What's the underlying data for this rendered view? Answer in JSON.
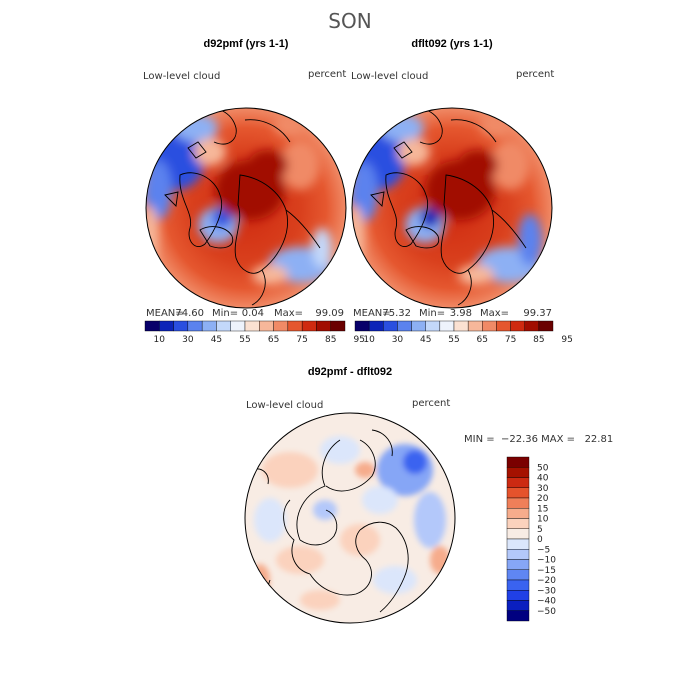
{
  "figure_title": "SON",
  "colors": {
    "abs_levels": [
      "#08006a",
      "#0c24b8",
      "#2a4fe0",
      "#5b82ee",
      "#8db0f4",
      "#c3d8fa",
      "#eef3fc",
      "#fbe1d2",
      "#f6b79a",
      "#f08a66",
      "#e5572f",
      "#cf2a10",
      "#a10d00",
      "#6a0000"
    ],
    "diff_levels": [
      "#000080",
      "#0a1fbf",
      "#2040e6",
      "#3a63f0",
      "#5f86f3",
      "#86a6f6",
      "#b3c8fa",
      "#dbe6fb",
      "#f8ece4",
      "#fbd2bd",
      "#f6ac8c",
      "#ef7f59",
      "#e5532c",
      "#cc2a12",
      "#a51100",
      "#7a0000"
    ],
    "land_outline": "#000000",
    "text": "#000000"
  },
  "panels": [
    {
      "id": "d92pmf",
      "title": "d92pmf (yrs 1-1)",
      "variable": "Low-level cloud",
      "units": "percent",
      "stats": {
        "mean_label": "MEAN=",
        "mean": "74.60",
        "min_label": "Min=",
        "min": "0.04",
        "max_label": "Max=",
        "max": "99.09"
      }
    },
    {
      "id": "dflt092",
      "title": "dflt092 (yrs 1-1)",
      "variable": "Low-level cloud",
      "units": "percent",
      "stats": {
        "mean_label": "MEAN=",
        "mean": "75.32",
        "min_label": "Min=",
        "min": "3.98",
        "max_label": "Max=",
        "max": "99.37"
      }
    }
  ],
  "abs_colorbar": {
    "tick_labels": [
      "10",
      "30",
      "45",
      "55",
      "65",
      "75",
      "85",
      "95"
    ]
  },
  "difference_panel": {
    "title": "d92pmf - dflt092",
    "variable": "Low-level cloud",
    "units": "percent",
    "range_text": "MIN =  −22.36 MAX =   22.81",
    "colorbar_labels": [
      "50",
      "40",
      "30",
      "20",
      "15",
      "10",
      "5",
      "0",
      "−5",
      "−10",
      "−15",
      "−20",
      "−30",
      "−40",
      "−50"
    ]
  },
  "chart_data": [
    {
      "type": "heatmap",
      "projection": "north-polar-stereographic",
      "title": "d92pmf (yrs 1-1)",
      "field": "Low-level cloud",
      "units": "percent",
      "levels": [
        10,
        30,
        45,
        55,
        65,
        75,
        85,
        95
      ],
      "mean": 74.6,
      "min": 0.04,
      "max": 99.09
    },
    {
      "type": "heatmap",
      "projection": "north-polar-stereographic",
      "title": "dflt092 (yrs 1-1)",
      "field": "Low-level cloud",
      "units": "percent",
      "levels": [
        10,
        30,
        45,
        55,
        65,
        75,
        85,
        95
      ],
      "mean": 75.32,
      "min": 3.98,
      "max": 99.37
    },
    {
      "type": "heatmap",
      "projection": "north-polar-stereographic",
      "title": "d92pmf - dflt092",
      "field": "Low-level cloud",
      "units": "percent",
      "levels": [
        -50,
        -40,
        -30,
        -20,
        -15,
        -10,
        -5,
        0,
        5,
        10,
        15,
        20,
        30,
        40,
        50
      ],
      "min": -22.36,
      "max": 22.81
    }
  ]
}
